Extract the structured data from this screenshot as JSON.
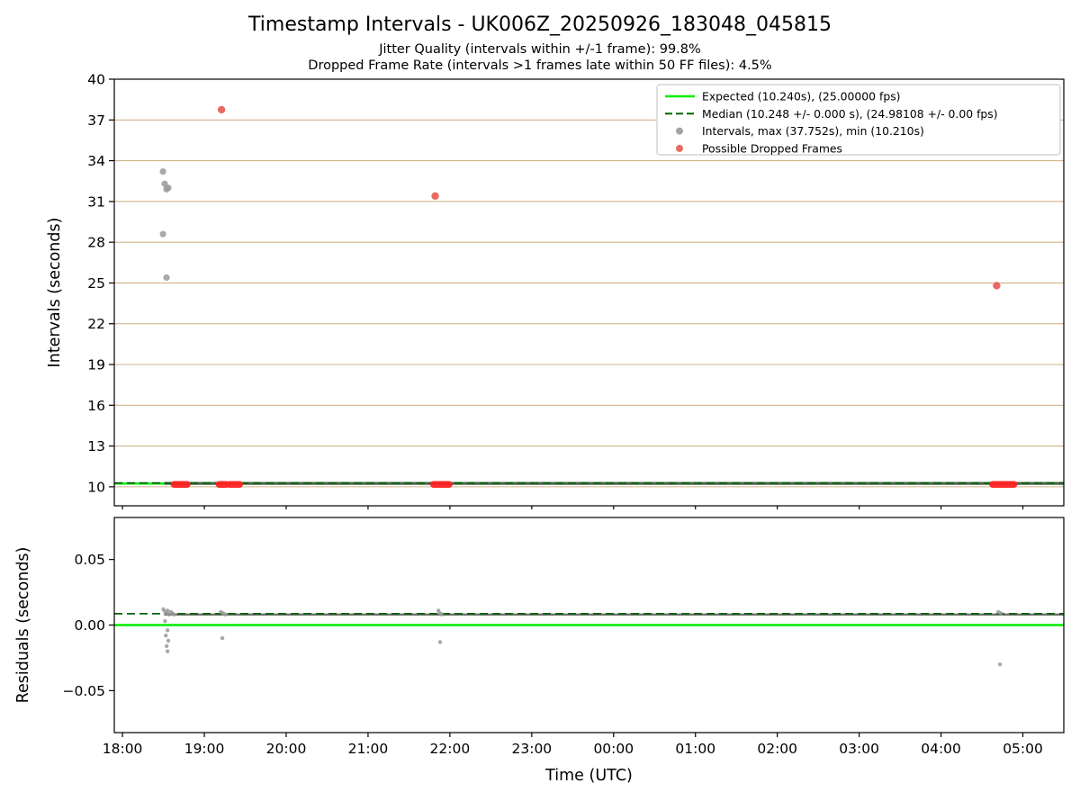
{
  "figure": {
    "title": "Timestamp Intervals - UK006Z_20250926_183048_045815",
    "subtitle1": "Jitter Quality (intervals within +/-1 frame): 99.8%",
    "subtitle2": "Dropped Frame Rate (intervals >1 frames late within 50 FF files): 4.5%"
  },
  "colors": {
    "expected": "#00ee00",
    "median": "#006400",
    "grid": "#d2b48c",
    "points": "#9a9a9a",
    "dense": "#575757",
    "dropped": "#ff2222",
    "dropped_single": "#e85a50",
    "spine": "#000000",
    "legend_border": "#cccccc"
  },
  "x_axis": {
    "label": "Time (UTC)",
    "xlim_hours": [
      17.9,
      29.5
    ],
    "ticks": [
      {
        "hour": 18,
        "label": "18:00"
      },
      {
        "hour": 19,
        "label": "19:00"
      },
      {
        "hour": 20,
        "label": "20:00"
      },
      {
        "hour": 21,
        "label": "21:00"
      },
      {
        "hour": 22,
        "label": "22:00"
      },
      {
        "hour": 23,
        "label": "23:00"
      },
      {
        "hour": 24,
        "label": "00:00"
      },
      {
        "hour": 25,
        "label": "01:00"
      },
      {
        "hour": 26,
        "label": "02:00"
      },
      {
        "hour": 27,
        "label": "03:00"
      },
      {
        "hour": 28,
        "label": "04:00"
      },
      {
        "hour": 29,
        "label": "05:00"
      }
    ]
  },
  "chart_data": [
    {
      "id": "intervals",
      "type": "scatter",
      "title": "Timestamp Intervals - UK006Z_20250926_183048_045815",
      "ylabel": "Intervals (seconds)",
      "ylim": [
        8.6,
        40
      ],
      "yticks": [
        10,
        13,
        16,
        19,
        22,
        25,
        28,
        31,
        34,
        37,
        40
      ],
      "grid": "horizontal",
      "expected_line": {
        "value": 10.24,
        "fps": 25.0,
        "label": "Expected (10.240s), (25.00000 fps)"
      },
      "median_line": {
        "value": 10.248,
        "fps": 24.98108,
        "label": "Median (10.248 +/- 0.000 s), (24.98108 +/- 0.00 fps)"
      },
      "intervals_series_label": "Intervals, max (37.752s), min (10.210s)",
      "dropped_series_label": "Possible Dropped Frames",
      "max_interval_s": 37.752,
      "min_interval_s": 10.21,
      "baseline_span_hours": [
        18.51,
        29.5
      ],
      "gray_outliers": [
        [
          18.495,
          33.2
        ],
        [
          18.516,
          32.3
        ],
        [
          18.538,
          31.9
        ],
        [
          18.56,
          32.0
        ],
        [
          18.495,
          28.6
        ],
        [
          18.538,
          25.4
        ]
      ],
      "red_outliers": [
        [
          19.21,
          37.75
        ],
        [
          21.82,
          31.4
        ],
        [
          28.68,
          24.8
        ]
      ],
      "red_baseline_clusters": [
        [
          18.63,
          18.79
        ],
        [
          19.18,
          19.27
        ],
        [
          19.31,
          19.43
        ],
        [
          21.8,
          21.99
        ],
        [
          28.63,
          28.89
        ]
      ],
      "legend": [
        {
          "type": "line",
          "color": "#00ee00",
          "label": "Expected (10.240s), (25.00000 fps)"
        },
        {
          "type": "dashed",
          "color": "#006400",
          "label": "Median (10.248 +/- 0.000 s), (24.98108 +/- 0.00 fps)"
        },
        {
          "type": "dot",
          "color": "#9a9a9a",
          "label": "Intervals, max (37.752s), min (10.210s)"
        },
        {
          "type": "dot",
          "color": "#e85a50",
          "label": "Possible Dropped Frames"
        }
      ]
    },
    {
      "id": "residuals",
      "type": "scatter",
      "ylabel": "Residuals (seconds)",
      "ylim": [
        -0.082,
        0.082
      ],
      "yticks": [
        -0.05,
        0.0,
        0.05
      ],
      "ytick_labels": [
        "−0.05",
        "0.00",
        "0.05"
      ],
      "zero_line_value": 0.0,
      "median_residual_value": 0.008,
      "baseline_span_hours": [
        18.51,
        29.5
      ],
      "points": [
        [
          18.5,
          0.012
        ],
        [
          18.52,
          0.01
        ],
        [
          18.54,
          0.009
        ],
        [
          18.55,
          0.011
        ],
        [
          18.57,
          0.008
        ],
        [
          18.59,
          0.01
        ],
        [
          18.61,
          0.009
        ],
        [
          18.63,
          0.008
        ],
        [
          18.52,
          0.003
        ],
        [
          18.55,
          -0.004
        ],
        [
          18.53,
          -0.008
        ],
        [
          18.56,
          -0.012
        ],
        [
          18.54,
          -0.016
        ],
        [
          18.55,
          -0.02
        ],
        [
          19.2,
          0.01
        ],
        [
          19.23,
          0.009
        ],
        [
          19.26,
          0.008
        ],
        [
          19.22,
          -0.01
        ],
        [
          21.86,
          0.011
        ],
        [
          21.88,
          0.009
        ],
        [
          21.9,
          0.008
        ],
        [
          21.88,
          -0.013
        ],
        [
          28.7,
          0.01
        ],
        [
          28.73,
          0.009
        ],
        [
          28.72,
          -0.03
        ]
      ]
    }
  ]
}
